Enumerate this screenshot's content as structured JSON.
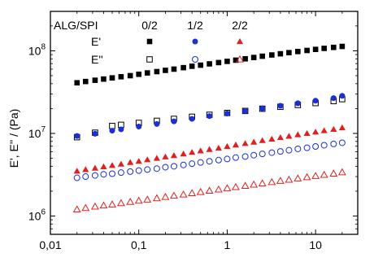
{
  "chart_data": {
    "type": "scatter",
    "xscale": "log",
    "yscale": "log",
    "xlim": [
      0.01,
      30
    ],
    "ylim": [
      600000,
      300000000
    ],
    "xticks": [
      0.01,
      0.1,
      1,
      10
    ],
    "xtick_labels": [
      "0,01",
      "0,1",
      "1",
      "10"
    ],
    "yticks": [
      1000000,
      10000000,
      100000000
    ],
    "ytick_labels": [
      {
        "base": "10",
        "exp": "6"
      },
      {
        "base": "10",
        "exp": "7"
      },
      {
        "base": "10",
        "exp": "8"
      }
    ],
    "xlabel": "",
    "ylabel": "E', E'' / (Pa)",
    "grid": false,
    "legend": {
      "placement": "top-left",
      "header": "ALG/SPI",
      "groups": [
        "0/2",
        "1/2",
        "2/2"
      ],
      "rows": [
        "E'",
        "E''"
      ]
    },
    "colors": {
      "0/2": "#000000",
      "1/2": "#1a2fd6",
      "2/2": "#e02020"
    },
    "x": [
      0.02,
      0.025,
      0.032,
      0.04,
      0.05,
      0.063,
      0.08,
      0.1,
      0.125,
      0.16,
      0.2,
      0.25,
      0.32,
      0.4,
      0.5,
      0.63,
      0.8,
      1.0,
      1.25,
      1.6,
      2.0,
      2.5,
      3.2,
      4.0,
      5.0,
      6.3,
      8.0,
      10.0,
      12.5,
      16.0,
      20.0
    ],
    "series": [
      {
        "group": "0/2",
        "modulus": "E'",
        "marker": "square-filled",
        "values": [
          41000000,
          42500000,
          44000000,
          45500000,
          47000000,
          48500000,
          50000000,
          52000000,
          54000000,
          56000000,
          58000000,
          60000000,
          62500000,
          65000000,
          67000000,
          69500000,
          72000000,
          74500000,
          77000000,
          80000000,
          83000000,
          86000000,
          89000000,
          92000000,
          95000000,
          98000000,
          101000000,
          104000000,
          107000000,
          110000000,
          113000000
        ]
      },
      {
        "group": "0/2",
        "modulus": "E''",
        "marker": "square-open",
        "values": [
          9000000,
          null,
          10200000,
          null,
          12300000,
          12700000,
          null,
          13400000,
          null,
          14200000,
          null,
          15000000,
          null,
          15900000,
          null,
          16800000,
          null,
          17700000,
          null,
          18700000,
          null,
          19900000,
          null,
          21000000,
          null,
          22100000,
          null,
          23300000,
          null,
          24600000,
          26000000
        ]
      },
      {
        "group": "1/2",
        "modulus": "E'",
        "marker": "circle-filled",
        "values": [
          9300000,
          null,
          9900000,
          null,
          10800000,
          11200000,
          null,
          12100000,
          null,
          13000000,
          null,
          14000000,
          null,
          15000000,
          null,
          16200000,
          null,
          17400000,
          null,
          18700000,
          null,
          20100000,
          null,
          21600000,
          null,
          23200000,
          null,
          24900000,
          null,
          26700000,
          28500000
        ]
      },
      {
        "group": "1/2",
        "modulus": "E''",
        "marker": "circle-open",
        "values": [
          2900000,
          3000000,
          3100000,
          3200000,
          3250000,
          3350000,
          3450000,
          3550000,
          3650000,
          3750000,
          3900000,
          4000000,
          4150000,
          4300000,
          4450000,
          4600000,
          4750000,
          4900000,
          5100000,
          5250000,
          5450000,
          5650000,
          5850000,
          6050000,
          6250000,
          6500000,
          6700000,
          6950000,
          7200000,
          7450000,
          7700000
        ]
      },
      {
        "group": "2/2",
        "modulus": "E'",
        "marker": "triangle-filled",
        "values": [
          3500000,
          3650000,
          3800000,
          3950000,
          4100000,
          4250000,
          4450000,
          4600000,
          4800000,
          5000000,
          5200000,
          5400000,
          5650000,
          5900000,
          6150000,
          6400000,
          6650000,
          6950000,
          7250000,
          7550000,
          7850000,
          8200000,
          8550000,
          8900000,
          9250000,
          9650000,
          10000000,
          10400000,
          10800000,
          11200000,
          11700000
        ]
      },
      {
        "group": "2/2",
        "modulus": "E''",
        "marker": "triangle-open",
        "values": [
          1200000,
          1250000,
          1300000,
          1340000,
          1380000,
          1430000,
          1480000,
          1530000,
          1580000,
          1640000,
          1700000,
          1760000,
          1820000,
          1890000,
          1950000,
          2020000,
          2090000,
          2170000,
          2240000,
          2320000,
          2400000,
          2480000,
          2570000,
          2660000,
          2750000,
          2850000,
          2950000,
          3050000,
          3150000,
          3260000,
          3380000
        ]
      }
    ]
  }
}
